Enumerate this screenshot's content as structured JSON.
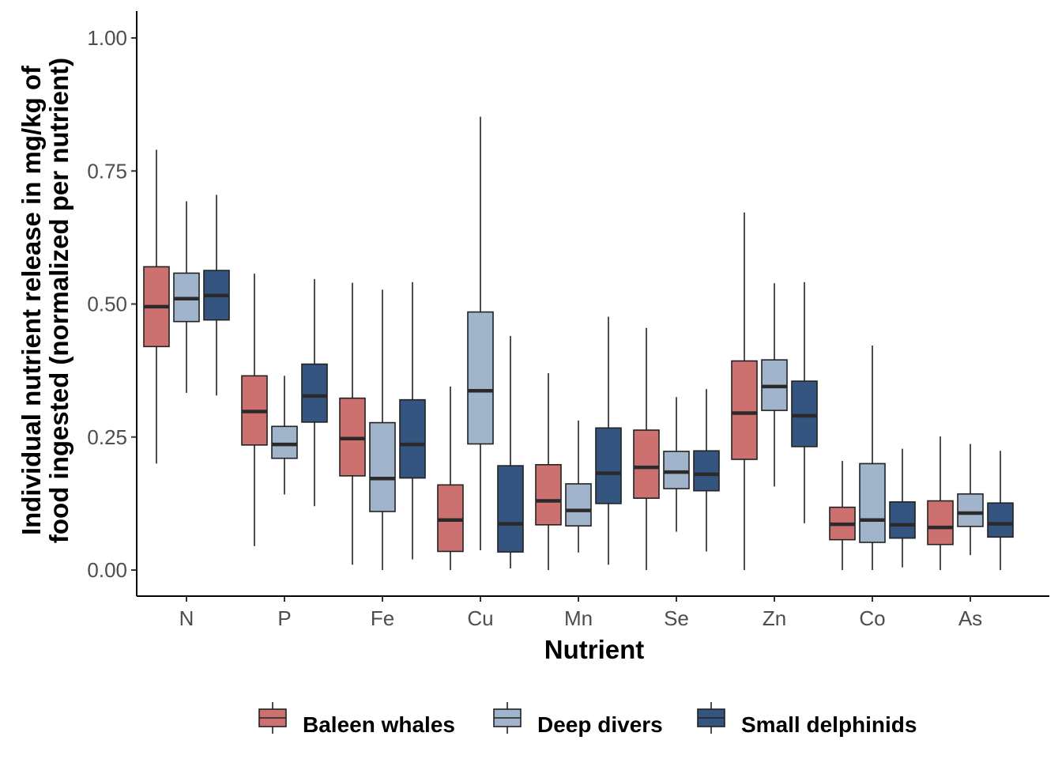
{
  "chart_data": {
    "type": "boxplot",
    "xlabel": "Nutrient",
    "ylabel_lines": [
      "Individual nutrient release in mg/kg of",
      "food ingested (normalized per nutrient)"
    ],
    "ylim": [
      -0.05,
      1.05
    ],
    "yticks": [
      0.0,
      0.25,
      0.5,
      0.75,
      1.0
    ],
    "ytick_labels": [
      "0.00",
      "0.25",
      "0.50",
      "0.75",
      "1.00"
    ],
    "grid": false,
    "legend_position": "bottom",
    "categories": [
      "N",
      "P",
      "Fe",
      "Cu",
      "Mn",
      "Se",
      "Zn",
      "Co",
      "As"
    ],
    "series": [
      {
        "name": "Baleen whales",
        "color": "#cd7070",
        "boxes": [
          {
            "min": 0.2,
            "q1": 0.42,
            "median": 0.495,
            "q3": 0.57,
            "max": 0.79
          },
          {
            "min": 0.045,
            "q1": 0.235,
            "median": 0.298,
            "q3": 0.365,
            "max": 0.557
          },
          {
            "min": 0.01,
            "q1": 0.177,
            "median": 0.247,
            "q3": 0.323,
            "max": 0.54
          },
          {
            "min": 0.0,
            "q1": 0.035,
            "median": 0.094,
            "q3": 0.16,
            "max": 0.345
          },
          {
            "min": 0.0,
            "q1": 0.085,
            "median": 0.13,
            "q3": 0.198,
            "max": 0.37
          },
          {
            "min": 0.0,
            "q1": 0.135,
            "median": 0.193,
            "q3": 0.263,
            "max": 0.455
          },
          {
            "min": 0.0,
            "q1": 0.208,
            "median": 0.295,
            "q3": 0.393,
            "max": 0.672
          },
          {
            "min": 0.0,
            "q1": 0.057,
            "median": 0.086,
            "q3": 0.118,
            "max": 0.205
          },
          {
            "min": 0.0,
            "q1": 0.048,
            "median": 0.08,
            "q3": 0.13,
            "max": 0.251
          }
        ]
      },
      {
        "name": "Deep divers",
        "color": "#a0b4cc",
        "boxes": [
          {
            "min": 0.333,
            "q1": 0.467,
            "median": 0.51,
            "q3": 0.558,
            "max": 0.693
          },
          {
            "min": 0.142,
            "q1": 0.21,
            "median": 0.236,
            "q3": 0.27,
            "max": 0.365
          },
          {
            "min": 0.0,
            "q1": 0.11,
            "median": 0.172,
            "q3": 0.277,
            "max": 0.527
          },
          {
            "min": 0.037,
            "q1": 0.237,
            "median": 0.337,
            "q3": 0.485,
            "max": 0.852
          },
          {
            "min": 0.033,
            "q1": 0.083,
            "median": 0.112,
            "q3": 0.162,
            "max": 0.281
          },
          {
            "min": 0.072,
            "q1": 0.153,
            "median": 0.184,
            "q3": 0.223,
            "max": 0.325
          },
          {
            "min": 0.157,
            "q1": 0.3,
            "median": 0.345,
            "q3": 0.395,
            "max": 0.539
          },
          {
            "min": 0.0,
            "q1": 0.052,
            "median": 0.094,
            "q3": 0.2,
            "max": 0.422
          },
          {
            "min": 0.028,
            "q1": 0.082,
            "median": 0.107,
            "q3": 0.143,
            "max": 0.237
          }
        ]
      },
      {
        "name": "Small delphinids",
        "color": "#34557f",
        "boxes": [
          {
            "min": 0.328,
            "q1": 0.47,
            "median": 0.516,
            "q3": 0.563,
            "max": 0.705
          },
          {
            "min": 0.12,
            "q1": 0.278,
            "median": 0.327,
            "q3": 0.387,
            "max": 0.547
          },
          {
            "min": 0.02,
            "q1": 0.173,
            "median": 0.236,
            "q3": 0.32,
            "max": 0.541
          },
          {
            "min": 0.003,
            "q1": 0.034,
            "median": 0.087,
            "q3": 0.196,
            "max": 0.44
          },
          {
            "min": 0.01,
            "q1": 0.125,
            "median": 0.182,
            "q3": 0.267,
            "max": 0.476
          },
          {
            "min": 0.035,
            "q1": 0.149,
            "median": 0.18,
            "q3": 0.224,
            "max": 0.34
          },
          {
            "min": 0.088,
            "q1": 0.232,
            "median": 0.29,
            "q3": 0.355,
            "max": 0.541
          },
          {
            "min": 0.005,
            "q1": 0.06,
            "median": 0.085,
            "q3": 0.128,
            "max": 0.228
          },
          {
            "min": 0.0,
            "q1": 0.062,
            "median": 0.087,
            "q3": 0.126,
            "max": 0.224
          }
        ]
      }
    ]
  }
}
